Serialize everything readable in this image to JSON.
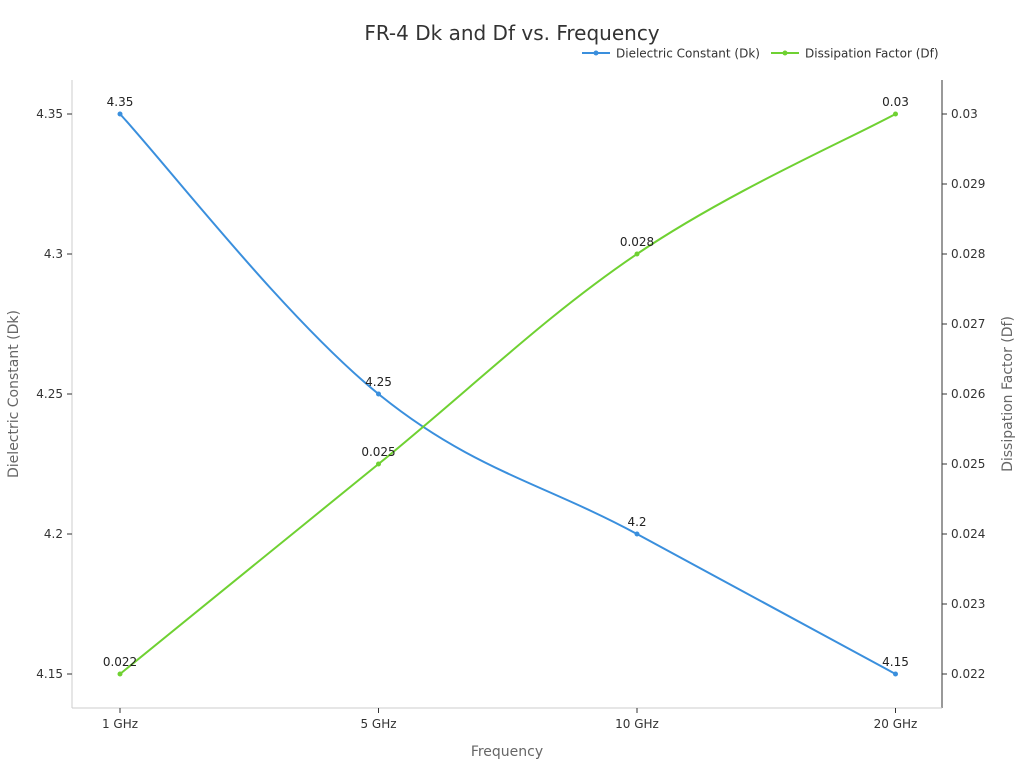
{
  "chart_data": {
    "type": "line",
    "title": "FR-4 Dk and Df vs. Frequency",
    "xlabel": "Frequency",
    "categories": [
      "1 GHz",
      "5 GHz",
      "10 GHz",
      "20 GHz"
    ],
    "y_left": {
      "label": "Dielectric Constant (Dk)",
      "range": [
        4.1375,
        4.3625
      ],
      "ticks": [
        "4.15",
        "4.2",
        "4.25",
        "4.3",
        "4.35"
      ]
    },
    "y_right": {
      "label": "Dissipation Factor (Df)",
      "range": [
        0.0215,
        0.0305
      ],
      "ticks": [
        "0.022",
        "0.023",
        "0.024",
        "0.025",
        "0.026",
        "0.027",
        "0.028",
        "0.029",
        "0.03"
      ]
    },
    "series": [
      {
        "name": "Dielectric Constant (Dk)",
        "axis": "left",
        "color": "#3a8fdd",
        "values": [
          4.35,
          4.25,
          4.2,
          4.15
        ],
        "labels": [
          "4.35",
          "4.25",
          "4.2",
          "4.15"
        ]
      },
      {
        "name": "Dissipation Factor (Df)",
        "axis": "right",
        "color": "#6fd132",
        "values": [
          0.022,
          0.025,
          0.028,
          0.03
        ],
        "labels": [
          "0.022",
          "0.025",
          "0.028",
          "0.03"
        ]
      }
    ],
    "legend_position": "top-right",
    "grid": false
  }
}
